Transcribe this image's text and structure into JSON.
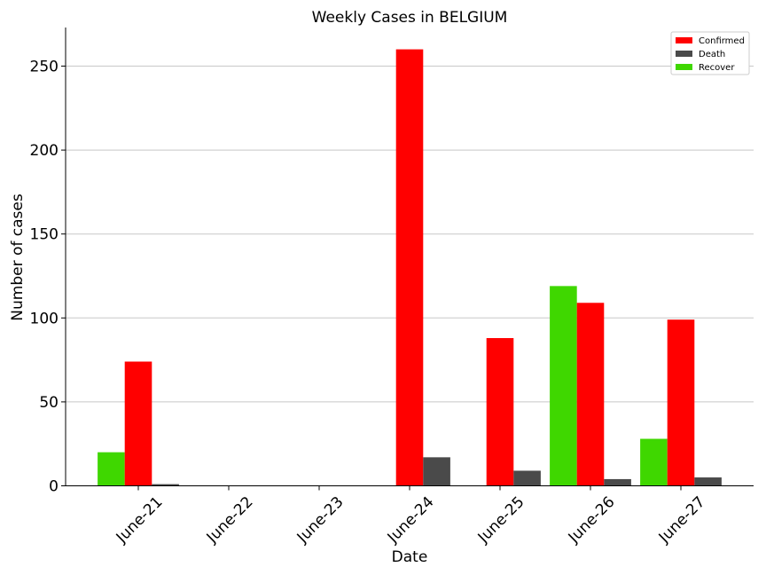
{
  "chart_data": {
    "type": "bar",
    "title": "Weekly Cases in BELGIUM",
    "xlabel": "Date",
    "ylabel": "Number of cases",
    "categories": [
      "June-21",
      "June-22",
      "June-23",
      "June-24",
      "June-25",
      "June-26",
      "June-27"
    ],
    "yticks": [
      "0",
      "50",
      "100",
      "150",
      "200",
      "250"
    ],
    "ylim": [
      0,
      273
    ],
    "grid": "horizontal",
    "legend_position": "top-right",
    "series": [
      {
        "name": "Recover",
        "color": "#3fd700",
        "values": [
          20,
          0,
          0,
          0,
          0,
          119,
          28
        ]
      },
      {
        "name": "Confirmed",
        "color": "#ff0000",
        "values": [
          74,
          0,
          0,
          260,
          88,
          109,
          99
        ]
      },
      {
        "name": "Death",
        "color": "#4a4a4a",
        "values": [
          1,
          0,
          0,
          17,
          9,
          4,
          5
        ]
      }
    ],
    "legend_order": [
      "Confirmed",
      "Death",
      "Recover"
    ]
  }
}
